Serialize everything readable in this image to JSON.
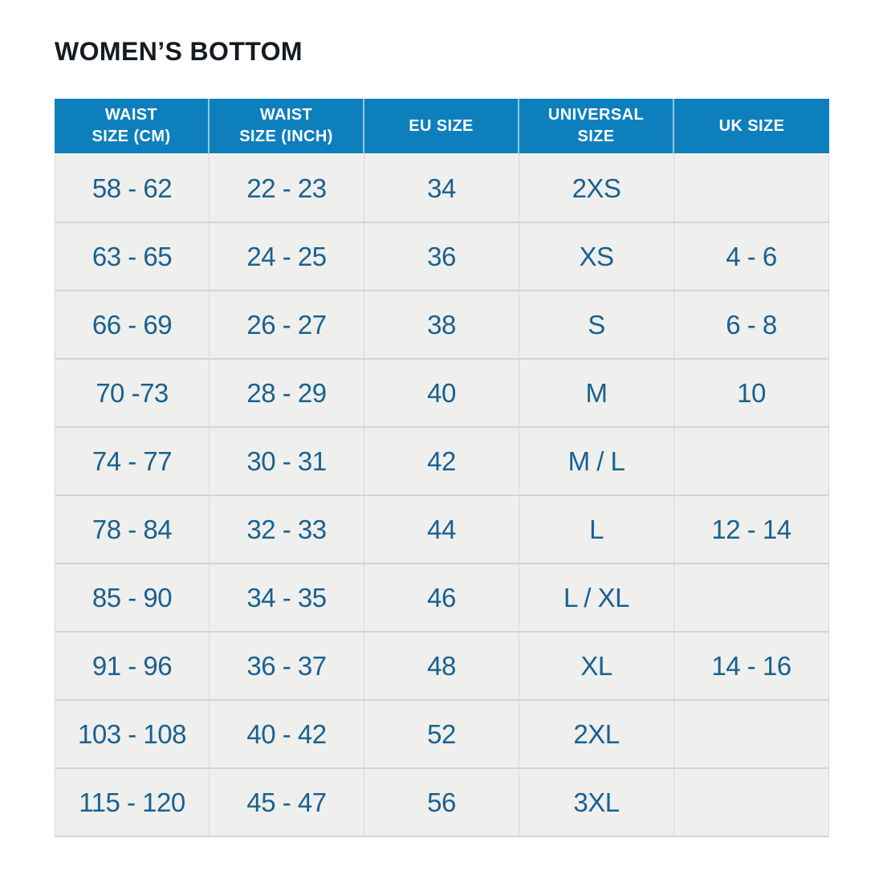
{
  "title": "WOMEN’S BOTTOM",
  "colors": {
    "header_background": "#0e7fbd",
    "header_text": "#ffffff",
    "row_background": "#efefed",
    "cell_text": "#19618f",
    "title_text": "#151b23",
    "border": "#d4d4d2",
    "page_background": "#ffffff"
  },
  "table": {
    "columns": [
      {
        "id": "waist-size-cm",
        "label": "WAIST\nSIZE (CM)"
      },
      {
        "id": "waist-size-inch",
        "label": "WAIST\nSIZE (INCH)"
      },
      {
        "id": "eu-size",
        "label": "EU SIZE"
      },
      {
        "id": "universal-size",
        "label": "UNIVERSAL\nSIZE"
      },
      {
        "id": "uk-size",
        "label": "UK SIZE"
      }
    ],
    "rows": [
      [
        "58 - 62",
        "22 - 23",
        "34",
        "2XS",
        ""
      ],
      [
        "63 - 65",
        "24 - 25",
        "36",
        "XS",
        "4 - 6"
      ],
      [
        "66 - 69",
        "26 - 27",
        "38",
        "S",
        "6 - 8"
      ],
      [
        "70 -73",
        "28 - 29",
        "40",
        "M",
        "10"
      ],
      [
        "74 - 77",
        "30 - 31",
        "42",
        "M / L",
        ""
      ],
      [
        "78 - 84",
        "32 - 33",
        "44",
        "L",
        "12 - 14"
      ],
      [
        "85 - 90",
        "34 - 35",
        "46",
        "L / XL",
        ""
      ],
      [
        "91 - 96",
        "36 - 37",
        "48",
        "XL",
        "14 - 16"
      ],
      [
        "103 - 108",
        "40 - 42",
        "52",
        "2XL",
        ""
      ],
      [
        "115 - 120",
        "45 - 47",
        "56",
        "3XL",
        ""
      ]
    ]
  },
  "chart_data": {
    "type": "table",
    "title": "WOMEN’S BOTTOM",
    "columns": [
      "WAIST SIZE (CM)",
      "WAIST SIZE (INCH)",
      "EU SIZE",
      "UNIVERSAL SIZE",
      "UK SIZE"
    ],
    "rows": [
      [
        "58 - 62",
        "22 - 23",
        "34",
        "2XS",
        ""
      ],
      [
        "63 - 65",
        "24 - 25",
        "36",
        "XS",
        "4 - 6"
      ],
      [
        "66 - 69",
        "26 - 27",
        "38",
        "S",
        "6 - 8"
      ],
      [
        "70 -73",
        "28 - 29",
        "40",
        "M",
        "10"
      ],
      [
        "74 - 77",
        "30 - 31",
        "42",
        "M / L",
        ""
      ],
      [
        "78 - 84",
        "32 - 33",
        "44",
        "L",
        "12 - 14"
      ],
      [
        "85 - 90",
        "34 - 35",
        "46",
        "L / XL",
        ""
      ],
      [
        "91 - 96",
        "36 - 37",
        "48",
        "XL",
        "14 - 16"
      ],
      [
        "103 - 108",
        "40 - 42",
        "52",
        "2XL",
        ""
      ],
      [
        "115 - 120",
        "45 - 47",
        "56",
        "3XL",
        ""
      ]
    ],
    "layout": {
      "header_style": "blue background, white bold text",
      "body_style": "light gray rows, steel-blue centered text",
      "grid": "thin gray cell borders"
    }
  }
}
